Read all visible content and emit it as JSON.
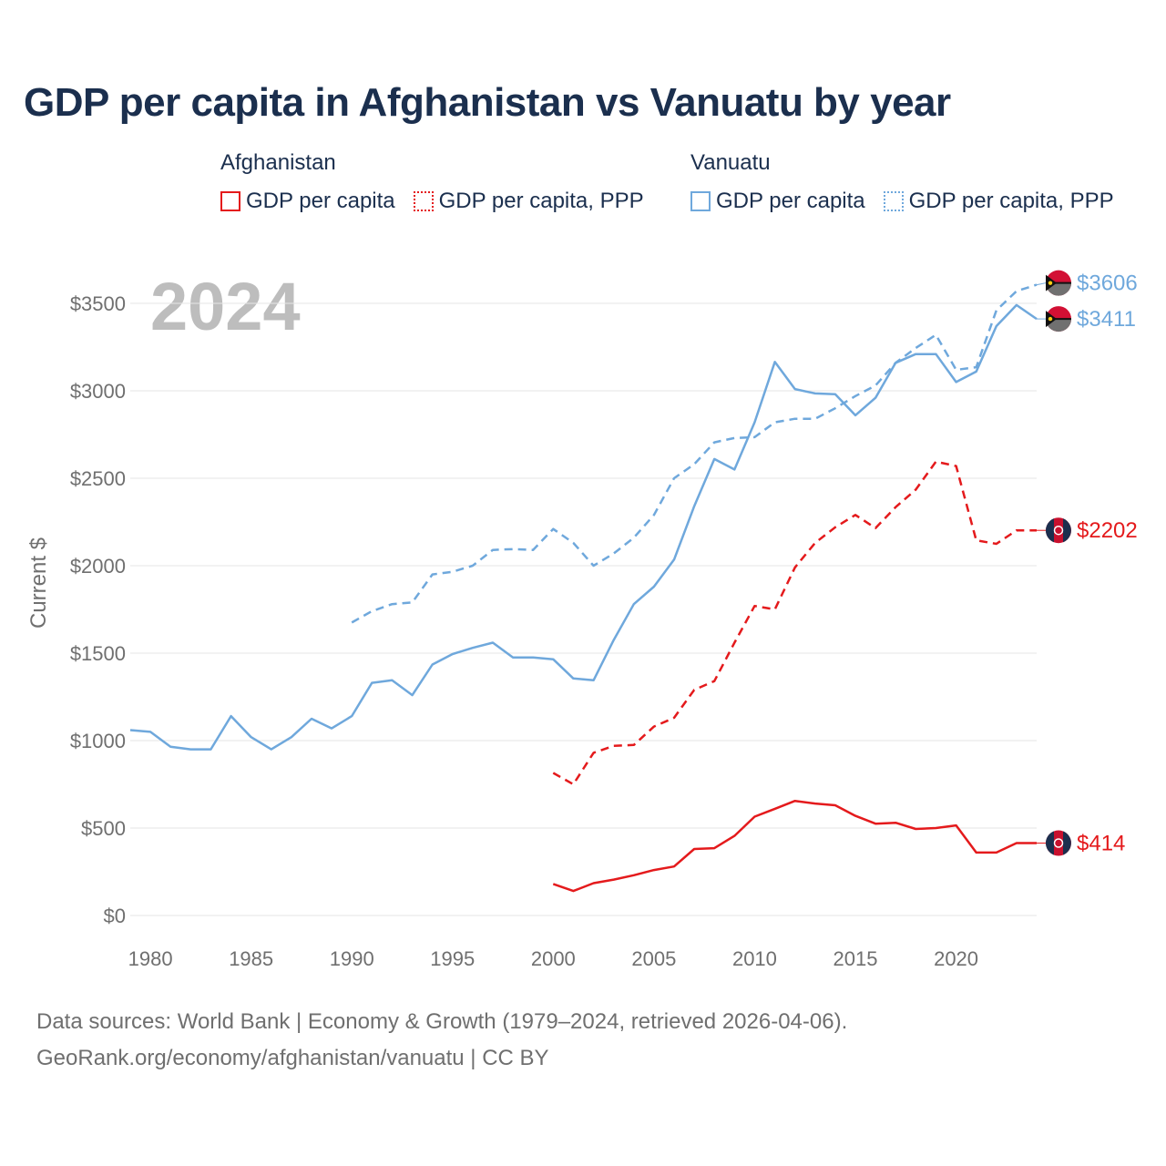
{
  "title": "GDP per capita in Afghanistan vs Vanuatu by year",
  "legend": {
    "groups": [
      {
        "name": "Afghanistan",
        "items": [
          "GDP per capita",
          "GDP per capita, PPP"
        ]
      },
      {
        "name": "Vanuatu",
        "items": [
          "GDP per capita",
          "GDP per capita, PPP"
        ]
      }
    ]
  },
  "footer": {
    "line1": "Data sources: World Bank | Economy & Growth (1979–2024, retrieved 2026-04-06).",
    "line2": "GeoRank.org/economy/afghanistan/vanuatu | CC BY"
  },
  "colors": {
    "afghanistan": "#e41a1c",
    "vanuatu": "#6fa8dc",
    "grid": "#e6e6e6",
    "axis_text": "#6f6f6f",
    "year_watermark": "#bdbdbd"
  },
  "chart_data": {
    "type": "line",
    "year_label": "2024",
    "ylabel": "Current $",
    "xlim": [
      1979,
      2024
    ],
    "ylim": [
      0,
      3700
    ],
    "x_ticks": [
      1980,
      1985,
      1990,
      1995,
      2000,
      2005,
      2010,
      2015,
      2020
    ],
    "x_tick_labels": [
      "1980",
      "1985",
      "1990",
      "1995",
      "2000",
      "2005",
      "2010",
      "2015",
      "2020"
    ],
    "y_ticks": [
      0,
      500,
      1000,
      1500,
      2000,
      2500,
      3000,
      3500
    ],
    "y_tick_labels": [
      "$0",
      "$500",
      "$1000",
      "$1500",
      "$2000",
      "$2500",
      "$3000",
      "$3500"
    ],
    "series": [
      {
        "name": "Vanuatu GDP per capita",
        "country": "vanuatu",
        "style": "solid",
        "end_label": "$3411",
        "x": [
          1979,
          1980,
          1981,
          1982,
          1983,
          1984,
          1985,
          1986,
          1987,
          1988,
          1989,
          1990,
          1991,
          1992,
          1993,
          1994,
          1995,
          1996,
          1997,
          1998,
          1999,
          2000,
          2001,
          2002,
          2003,
          2004,
          2005,
          2006,
          2007,
          2008,
          2009,
          2010,
          2011,
          2012,
          2013,
          2014,
          2015,
          2016,
          2017,
          2018,
          2019,
          2020,
          2021,
          2022,
          2023,
          2024
        ],
        "values": [
          1060,
          1050,
          965,
          950,
          950,
          1140,
          1020,
          950,
          1020,
          1125,
          1070,
          1140,
          1330,
          1345,
          1260,
          1435,
          1495,
          1530,
          1560,
          1475,
          1475,
          1465,
          1355,
          1345,
          1575,
          1780,
          1880,
          2035,
          2340,
          2610,
          2550,
          2820,
          3165,
          3010,
          2985,
          2980,
          2860,
          2960,
          3160,
          3210,
          3210,
          3050,
          3110,
          3370,
          3490,
          3411
        ]
      },
      {
        "name": "Vanuatu GDP per capita, PPP",
        "country": "vanuatu",
        "style": "dashed",
        "end_label": "$3606",
        "x": [
          1990,
          1991,
          1992,
          1993,
          1994,
          1995,
          1996,
          1997,
          1998,
          1999,
          2000,
          2001,
          2002,
          2003,
          2004,
          2005,
          2006,
          2007,
          2008,
          2009,
          2010,
          2011,
          2012,
          2013,
          2014,
          2015,
          2016,
          2017,
          2018,
          2019,
          2020,
          2021,
          2022,
          2023,
          2024
        ],
        "values": [
          1675,
          1740,
          1780,
          1790,
          1950,
          1965,
          2000,
          2090,
          2095,
          2090,
          2210,
          2130,
          2000,
          2070,
          2160,
          2290,
          2500,
          2580,
          2705,
          2730,
          2735,
          2820,
          2840,
          2840,
          2900,
          2970,
          3030,
          3160,
          3245,
          3320,
          3120,
          3135,
          3460,
          3570,
          3606
        ]
      },
      {
        "name": "Afghanistan GDP per capita",
        "country": "afghanistan",
        "style": "solid",
        "end_label": "$414",
        "x": [
          2000,
          2001,
          2002,
          2003,
          2004,
          2005,
          2006,
          2007,
          2008,
          2009,
          2010,
          2011,
          2012,
          2013,
          2014,
          2015,
          2016,
          2017,
          2018,
          2019,
          2020,
          2021,
          2022,
          2023,
          2024
        ],
        "values": [
          180,
          140,
          185,
          205,
          230,
          260,
          280,
          380,
          385,
          455,
          565,
          610,
          655,
          640,
          630,
          570,
          525,
          530,
          495,
          500,
          515,
          360,
          360,
          414,
          414
        ]
      },
      {
        "name": "Afghanistan GDP per capita, PPP",
        "country": "afghanistan",
        "style": "dashed",
        "end_label": "$2202",
        "x": [
          2000,
          2001,
          2002,
          2003,
          2004,
          2005,
          2006,
          2007,
          2008,
          2009,
          2010,
          2011,
          2012,
          2013,
          2014,
          2015,
          2016,
          2017,
          2018,
          2019,
          2020,
          2021,
          2022,
          2023,
          2024
        ],
        "values": [
          815,
          750,
          930,
          970,
          975,
          1080,
          1130,
          1290,
          1340,
          1560,
          1770,
          1750,
          1990,
          2130,
          2220,
          2290,
          2215,
          2335,
          2435,
          2595,
          2570,
          2145,
          2125,
          2202,
          2202
        ]
      }
    ]
  }
}
